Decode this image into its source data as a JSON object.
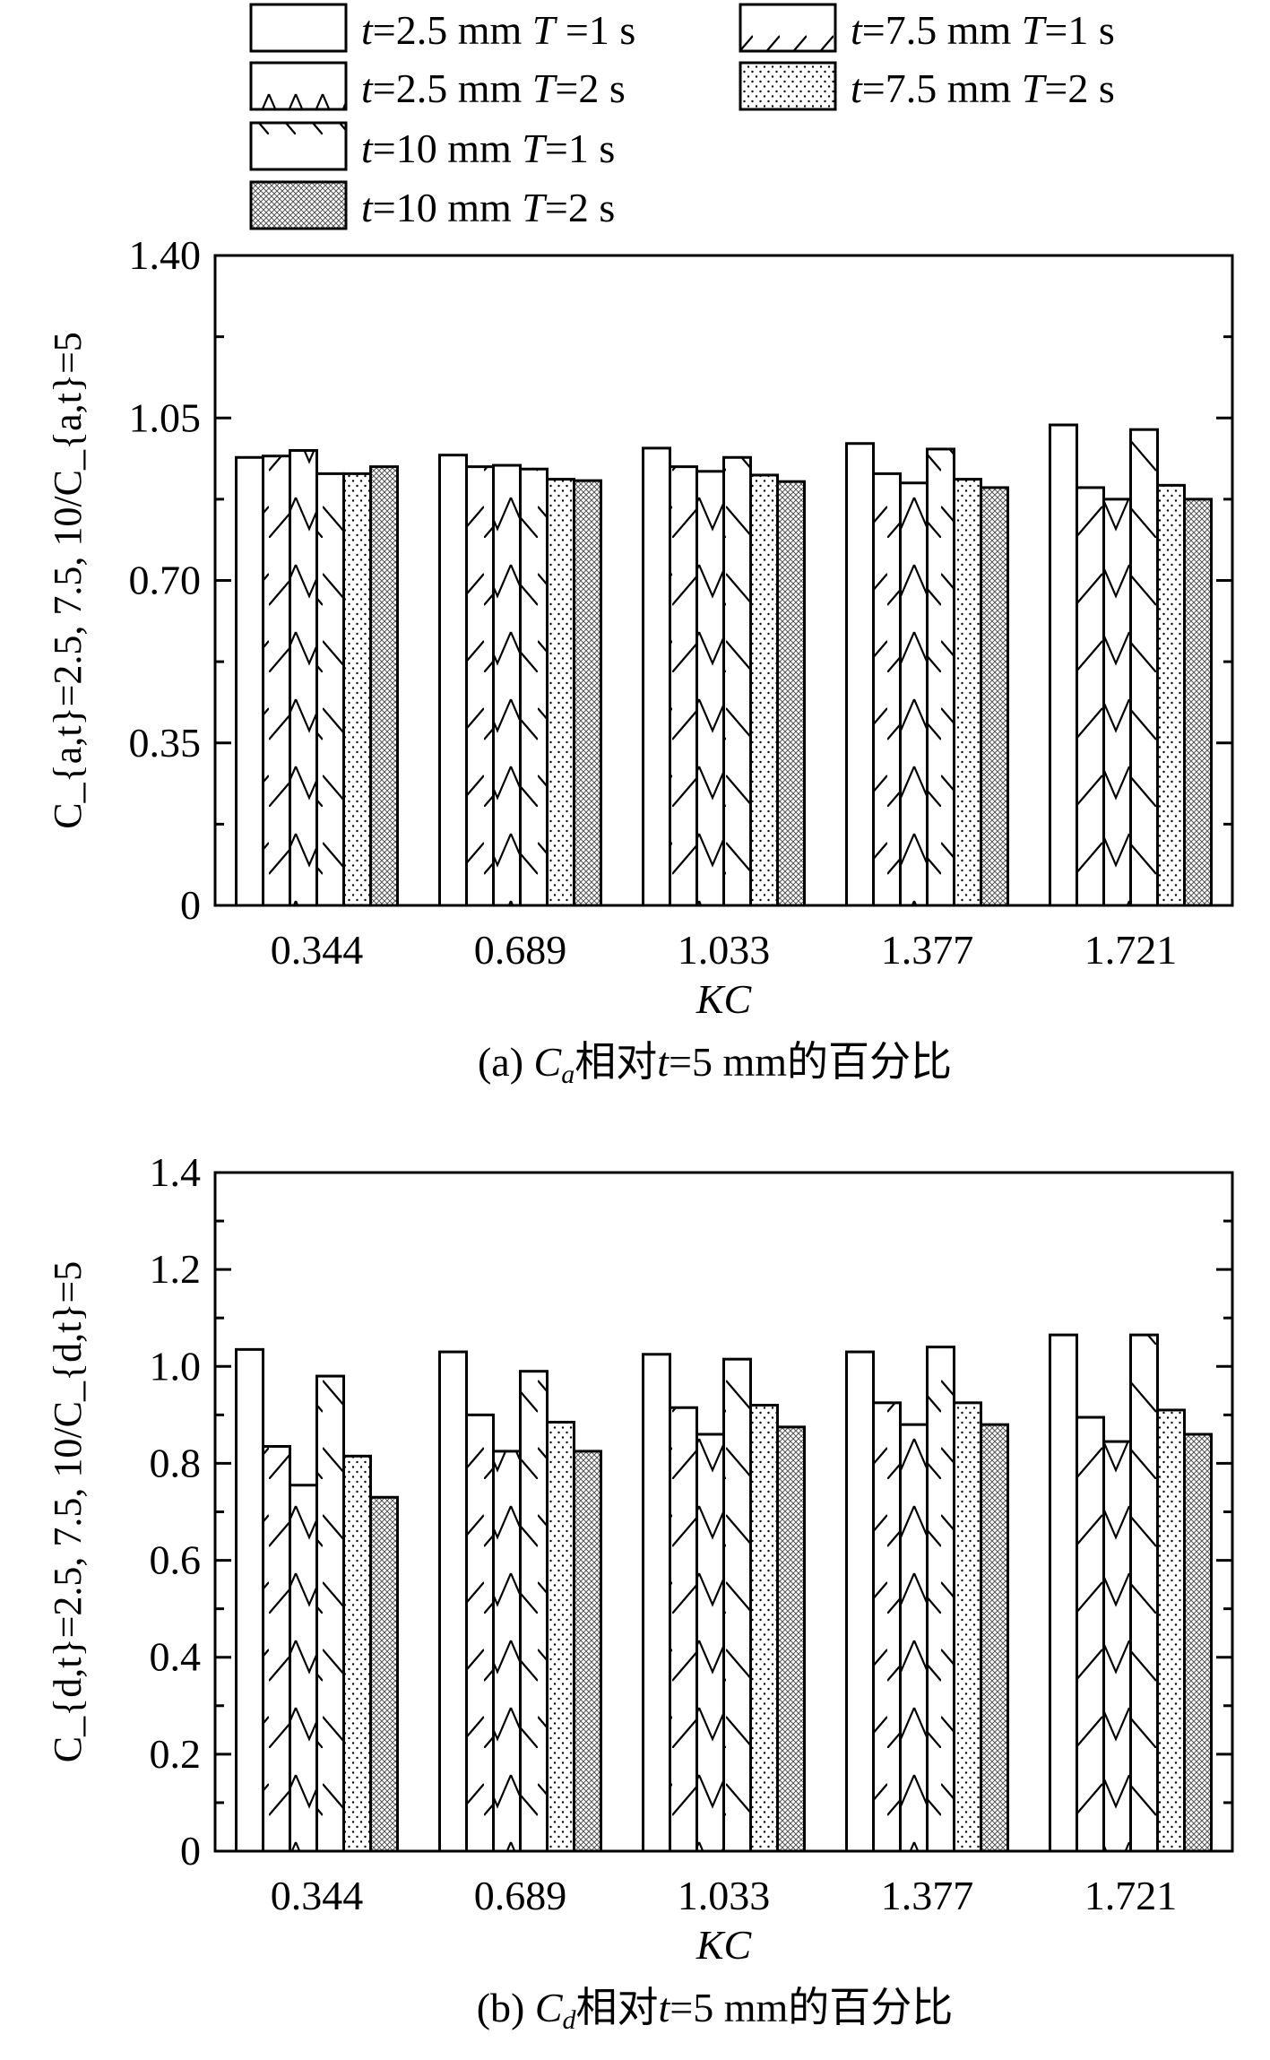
{
  "legend": [
    {
      "t": "t",
      "t_val": "=2.5 mm ",
      "T": "T",
      "T_val": " =1 s",
      "pattern": "plain"
    },
    {
      "t": "t",
      "t_val": "=2.5 mm ",
      "T": "T",
      "T_val": "=2 s",
      "pattern": "zigzag"
    },
    {
      "t": "t",
      "t_val": "=10 mm ",
      "T": "T",
      "T_val": "=1 s",
      "pattern": "backslash"
    },
    {
      "t": "t",
      "t_val": "=10 mm ",
      "T": "T",
      "T_val": "=2 s",
      "pattern": "crosshatch"
    },
    {
      "t": "t",
      "t_val": "=7.5 mm ",
      "T": "T",
      "T_val": "=1 s",
      "pattern": "slash"
    },
    {
      "t": "t",
      "t_val": "=7.5 mm ",
      "T": "T",
      "T_val": "=2 s",
      "pattern": "dots"
    }
  ],
  "chart_data": [
    {
      "type": "bar",
      "categories": [
        "0.344",
        "0.689",
        "1.033",
        "1.377",
        "1.721"
      ],
      "xlabel": "KC",
      "ylabel": "C_{a,t}=2.5, 7.5, 10/C_{a,t}=5",
      "ylim": [
        0,
        1.4
      ],
      "yticks": [
        "0",
        "0.35",
        "0.70",
        "1.05",
        "1.40"
      ],
      "caption": {
        "prefix": "(a) ",
        "C": "C",
        "sub": "a",
        "mid": "相对",
        "t": "t",
        "rest": "=5 mm的百分比"
      },
      "series": [
        {
          "name": "t=2.5 mm T =1 s",
          "pattern": "plain",
          "values": [
            0.965,
            0.97,
            0.985,
            0.995,
            1.035
          ]
        },
        {
          "name": "t=7.5 mm T=1 s",
          "pattern": "slash",
          "values": [
            0.968,
            0.945,
            0.945,
            0.93,
            0.9
          ]
        },
        {
          "name": "t=2.5 mm T=2 s",
          "pattern": "zigzag",
          "values": [
            0.98,
            0.948,
            0.935,
            0.91,
            0.875
          ]
        },
        {
          "name": "t=10 mm T=1 s",
          "pattern": "backslash",
          "values": [
            0.93,
            0.94,
            0.965,
            0.983,
            1.025
          ]
        },
        {
          "name": "t=7.5 mm T=2 s",
          "pattern": "dots",
          "values": [
            0.93,
            0.918,
            0.927,
            0.918,
            0.905
          ]
        },
        {
          "name": "t=10 mm T=2 s",
          "pattern": "crosshatch",
          "values": [
            0.945,
            0.915,
            0.913,
            0.9,
            0.875
          ]
        }
      ]
    },
    {
      "type": "bar",
      "categories": [
        "0.344",
        "0.689",
        "1.033",
        "1.377",
        "1.721"
      ],
      "xlabel": "KC",
      "ylabel": "C_{d,t}=2.5, 7.5, 10/C_{d,t}=5",
      "ylim": [
        0,
        1.4
      ],
      "yticks": [
        "0",
        "0.2",
        "0.4",
        "0.6",
        "0.8",
        "1.0",
        "1.2",
        "1.4"
      ],
      "caption": {
        "prefix": "(b) ",
        "C": "C",
        "sub": "d",
        "mid": "相对",
        "t": "t",
        "rest": "=5 mm的百分比"
      },
      "series": [
        {
          "name": "t=2.5 mm T =1 s",
          "pattern": "plain",
          "values": [
            1.035,
            1.03,
            1.025,
            1.03,
            1.065
          ]
        },
        {
          "name": "t=7.5 mm T=1 s",
          "pattern": "slash",
          "values": [
            0.835,
            0.9,
            0.915,
            0.925,
            0.895
          ]
        },
        {
          "name": "t=2.5 mm T=2 s",
          "pattern": "zigzag",
          "values": [
            0.755,
            0.825,
            0.86,
            0.88,
            0.845
          ]
        },
        {
          "name": "t=10 mm T=1 s",
          "pattern": "backslash",
          "values": [
            0.98,
            0.99,
            1.015,
            1.04,
            1.065
          ]
        },
        {
          "name": "t=7.5 mm T=2 s",
          "pattern": "dots",
          "values": [
            0.815,
            0.885,
            0.92,
            0.925,
            0.91
          ]
        },
        {
          "name": "t=10 mm T=2 s",
          "pattern": "crosshatch",
          "values": [
            0.73,
            0.825,
            0.875,
            0.88,
            0.86
          ]
        }
      ]
    }
  ]
}
